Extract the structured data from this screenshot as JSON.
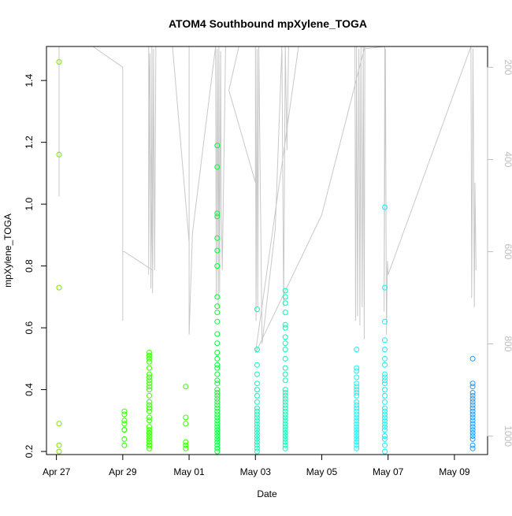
{
  "chart_data": {
    "type": "scatter",
    "title": "ATOM4 Southbound mpXylene_TOGA",
    "xlabel": "Date",
    "ylabel": "mpXylene_TOGA",
    "x_tick_labels": [
      "Apr 27",
      "Apr 29",
      "May 01",
      "May 03",
      "May 05",
      "May 07",
      "May 09"
    ],
    "x_tick_days": [
      0,
      2,
      4,
      6,
      8,
      10,
      12
    ],
    "xlim_days_since_apr27": [
      -0.3,
      13.0
    ],
    "ylim": [
      0.19,
      1.51
    ],
    "y_ticks": [
      0.2,
      0.4,
      0.6,
      0.8,
      1.0,
      1.2,
      1.4
    ],
    "y2_ticks": [
      200,
      400,
      600,
      800,
      1000
    ],
    "y2lim": [
      1040,
      155
    ],
    "y2_axis_color": "#bebebe",
    "altitude_line_color": "#c8c8c8",
    "series": [
      {
        "color": "#7fe500",
        "points": [
          [
            0.08,
            1.46
          ],
          [
            0.08,
            1.16
          ],
          [
            0.08,
            0.73
          ],
          [
            0.08,
            0.29
          ],
          [
            0.08,
            0.22
          ],
          [
            0.08,
            0.2
          ]
        ]
      },
      {
        "color": "#33ff00",
        "points": [
          [
            2.05,
            0.33
          ],
          [
            2.05,
            0.32
          ],
          [
            2.05,
            0.3
          ],
          [
            2.05,
            0.29
          ],
          [
            2.05,
            0.27
          ],
          [
            2.05,
            0.27
          ],
          [
            2.05,
            0.24
          ],
          [
            2.05,
            0.22
          ],
          [
            2.8,
            0.52
          ],
          [
            2.8,
            0.51
          ],
          [
            2.8,
            0.5
          ],
          [
            2.8,
            0.49
          ],
          [
            2.8,
            0.47
          ],
          [
            2.8,
            0.45
          ],
          [
            2.8,
            0.44
          ],
          [
            2.8,
            0.44
          ],
          [
            2.8,
            0.43
          ],
          [
            2.8,
            0.42
          ],
          [
            2.8,
            0.41
          ],
          [
            2.8,
            0.4
          ],
          [
            2.8,
            0.38
          ],
          [
            2.8,
            0.36
          ],
          [
            2.8,
            0.35
          ],
          [
            2.8,
            0.34
          ],
          [
            2.8,
            0.33
          ],
          [
            2.8,
            0.31
          ],
          [
            2.8,
            0.3
          ],
          [
            2.8,
            0.28
          ],
          [
            2.8,
            0.27
          ],
          [
            2.8,
            0.26
          ],
          [
            2.8,
            0.26
          ],
          [
            2.8,
            0.25
          ],
          [
            2.8,
            0.24
          ],
          [
            2.8,
            0.23
          ],
          [
            2.8,
            0.22
          ],
          [
            2.8,
            0.22
          ],
          [
            2.8,
            0.21
          ],
          [
            3.9,
            0.41
          ],
          [
            3.9,
            0.31
          ],
          [
            3.9,
            0.29
          ],
          [
            3.9,
            0.23
          ],
          [
            3.9,
            0.22
          ],
          [
            3.9,
            0.21
          ]
        ]
      },
      {
        "color": "#00ff33",
        "points": [
          [
            4.85,
            1.19
          ],
          [
            4.85,
            1.12
          ],
          [
            4.85,
            0.97
          ],
          [
            4.85,
            0.96
          ],
          [
            4.85,
            0.89
          ],
          [
            4.85,
            0.85
          ],
          [
            4.85,
            0.8
          ],
          [
            4.85,
            0.7
          ],
          [
            4.85,
            0.67
          ],
          [
            4.85,
            0.65
          ],
          [
            4.85,
            0.62
          ],
          [
            4.85,
            0.58
          ],
          [
            4.85,
            0.55
          ],
          [
            4.85,
            0.52
          ],
          [
            4.85,
            0.5
          ],
          [
            4.85,
            0.48
          ],
          [
            4.85,
            0.47
          ],
          [
            4.85,
            0.45
          ],
          [
            4.85,
            0.43
          ],
          [
            4.85,
            0.42
          ],
          [
            4.85,
            0.4
          ],
          [
            4.85,
            0.39
          ],
          [
            4.85,
            0.38
          ],
          [
            4.85,
            0.37
          ],
          [
            4.85,
            0.36
          ],
          [
            4.85,
            0.35
          ],
          [
            4.85,
            0.34
          ],
          [
            4.85,
            0.33
          ],
          [
            4.85,
            0.32
          ],
          [
            4.85,
            0.31
          ],
          [
            4.85,
            0.3
          ],
          [
            4.85,
            0.29
          ],
          [
            4.85,
            0.28
          ],
          [
            4.85,
            0.27
          ],
          [
            4.85,
            0.26
          ],
          [
            4.85,
            0.25
          ],
          [
            4.85,
            0.24
          ],
          [
            4.85,
            0.23
          ],
          [
            4.85,
            0.22
          ],
          [
            4.85,
            0.21
          ],
          [
            4.85,
            0.2
          ]
        ]
      },
      {
        "color": "#00ffb2",
        "points": [
          [
            6.05,
            0.66
          ],
          [
            6.05,
            0.53
          ],
          [
            6.05,
            0.48
          ],
          [
            6.05,
            0.45
          ],
          [
            6.05,
            0.42
          ],
          [
            6.05,
            0.4
          ],
          [
            6.05,
            0.38
          ],
          [
            6.05,
            0.36
          ],
          [
            6.05,
            0.34
          ],
          [
            6.05,
            0.33
          ],
          [
            6.05,
            0.32
          ],
          [
            6.05,
            0.31
          ],
          [
            6.05,
            0.3
          ],
          [
            6.05,
            0.29
          ],
          [
            6.05,
            0.28
          ],
          [
            6.05,
            0.27
          ],
          [
            6.05,
            0.26
          ],
          [
            6.05,
            0.25
          ],
          [
            6.05,
            0.24
          ],
          [
            6.05,
            0.23
          ],
          [
            6.05,
            0.22
          ],
          [
            6.05,
            0.21
          ],
          [
            6.05,
            0.2
          ],
          [
            6.9,
            0.72
          ],
          [
            6.9,
            0.7
          ],
          [
            6.9,
            0.68
          ],
          [
            6.9,
            0.65
          ],
          [
            6.9,
            0.61
          ],
          [
            6.9,
            0.6
          ],
          [
            6.9,
            0.57
          ],
          [
            6.9,
            0.55
          ],
          [
            6.9,
            0.53
          ],
          [
            6.9,
            0.5
          ],
          [
            6.9,
            0.47
          ],
          [
            6.9,
            0.45
          ],
          [
            6.9,
            0.43
          ],
          [
            6.9,
            0.4
          ],
          [
            6.9,
            0.39
          ],
          [
            6.9,
            0.38
          ],
          [
            6.9,
            0.37
          ],
          [
            6.9,
            0.36
          ],
          [
            6.9,
            0.35
          ],
          [
            6.9,
            0.34
          ],
          [
            6.9,
            0.33
          ],
          [
            6.9,
            0.32
          ],
          [
            6.9,
            0.31
          ],
          [
            6.9,
            0.3
          ],
          [
            6.9,
            0.29
          ],
          [
            6.9,
            0.28
          ],
          [
            6.9,
            0.27
          ],
          [
            6.9,
            0.26
          ],
          [
            6.9,
            0.25
          ],
          [
            6.9,
            0.24
          ],
          [
            6.9,
            0.23
          ],
          [
            6.9,
            0.22
          ],
          [
            6.9,
            0.21
          ]
        ]
      },
      {
        "color": "#00ffff",
        "points": [
          [
            9.05,
            0.53
          ],
          [
            9.05,
            0.47
          ],
          [
            9.05,
            0.46
          ],
          [
            9.05,
            0.44
          ],
          [
            9.05,
            0.42
          ],
          [
            9.05,
            0.41
          ],
          [
            9.05,
            0.4
          ],
          [
            9.05,
            0.39
          ],
          [
            9.05,
            0.38
          ],
          [
            9.05,
            0.36
          ],
          [
            9.05,
            0.35
          ],
          [
            9.05,
            0.34
          ],
          [
            9.05,
            0.33
          ],
          [
            9.05,
            0.32
          ],
          [
            9.05,
            0.31
          ],
          [
            9.05,
            0.3
          ],
          [
            9.05,
            0.29
          ],
          [
            9.05,
            0.28
          ],
          [
            9.05,
            0.27
          ],
          [
            9.05,
            0.26
          ],
          [
            9.05,
            0.25
          ],
          [
            9.05,
            0.24
          ],
          [
            9.05,
            0.23
          ],
          [
            9.05,
            0.22
          ],
          [
            9.05,
            0.21
          ],
          [
            9.9,
            0.99
          ],
          [
            9.9,
            0.73
          ],
          [
            9.9,
            0.62
          ],
          [
            9.9,
            0.56
          ],
          [
            9.9,
            0.53
          ],
          [
            9.9,
            0.5
          ],
          [
            9.9,
            0.48
          ],
          [
            9.9,
            0.45
          ],
          [
            9.9,
            0.44
          ],
          [
            9.9,
            0.43
          ],
          [
            9.9,
            0.42
          ],
          [
            9.9,
            0.4
          ],
          [
            9.9,
            0.38
          ],
          [
            9.9,
            0.36
          ],
          [
            9.9,
            0.34
          ],
          [
            9.9,
            0.33
          ],
          [
            9.9,
            0.32
          ],
          [
            9.9,
            0.31
          ],
          [
            9.9,
            0.3
          ],
          [
            9.9,
            0.29
          ],
          [
            9.9,
            0.28
          ],
          [
            9.9,
            0.27
          ],
          [
            9.9,
            0.25
          ],
          [
            9.9,
            0.24
          ],
          [
            9.9,
            0.22
          ],
          [
            9.9,
            0.2
          ]
        ]
      },
      {
        "color": "#1a99ff",
        "points": [
          [
            12.55,
            0.5
          ],
          [
            12.55,
            0.42
          ],
          [
            12.55,
            0.41
          ],
          [
            12.55,
            0.39
          ],
          [
            12.55,
            0.38
          ],
          [
            12.55,
            0.37
          ],
          [
            12.55,
            0.36
          ],
          [
            12.55,
            0.35
          ],
          [
            12.55,
            0.34
          ],
          [
            12.55,
            0.33
          ],
          [
            12.55,
            0.32
          ],
          [
            12.55,
            0.31
          ],
          [
            12.55,
            0.3
          ],
          [
            12.55,
            0.29
          ],
          [
            12.55,
            0.28
          ],
          [
            12.55,
            0.27
          ],
          [
            12.55,
            0.26
          ],
          [
            12.55,
            0.25
          ],
          [
            12.55,
            0.24
          ],
          [
            12.55,
            0.22
          ],
          [
            12.55,
            0.21
          ]
        ]
      }
    ],
    "altitude_trace": [
      [
        0.08,
        155
      ],
      [
        0.08,
        480
      ],
      [
        0.08,
        170
      ],
      [
        0.08,
        155
      ],
      [
        1.1,
        155
      ],
      [
        2.0,
        200
      ],
      [
        2.0,
        750
      ],
      [
        2.0,
        600
      ],
      [
        2.05,
        600
      ],
      [
        2.9,
        640
      ],
      [
        2.78,
        155
      ],
      [
        2.78,
        650
      ],
      [
        2.82,
        170
      ],
      [
        2.85,
        680
      ],
      [
        2.88,
        155
      ],
      [
        2.9,
        690
      ],
      [
        2.93,
        160
      ],
      [
        2.96,
        640
      ],
      [
        3.0,
        155
      ],
      [
        3.5,
        155
      ],
      [
        4.0,
        580
      ],
      [
        4.0,
        155
      ],
      [
        4.0,
        780
      ],
      [
        4.1,
        560
      ],
      [
        4.8,
        155
      ],
      [
        4.82,
        700
      ],
      [
        4.85,
        160
      ],
      [
        4.88,
        720
      ],
      [
        4.9,
        155
      ],
      [
        4.92,
        690
      ],
      [
        4.95,
        165
      ],
      [
        4.97,
        500
      ],
      [
        5.0,
        640
      ],
      [
        5.1,
        155
      ],
      [
        5.5,
        155
      ],
      [
        5.2,
        250
      ],
      [
        6.0,
        450
      ],
      [
        6.0,
        155
      ],
      [
        6.02,
        750
      ],
      [
        6.05,
        160
      ],
      [
        6.07,
        720
      ],
      [
        6.1,
        155
      ],
      [
        6.2,
        800
      ],
      [
        6.6,
        550
      ],
      [
        6.8,
        155
      ],
      [
        6.85,
        720
      ],
      [
        6.9,
        155
      ],
      [
        6.95,
        380
      ],
      [
        7.0,
        155
      ],
      [
        7.3,
        155
      ],
      [
        6.0,
        820
      ],
      [
        8.0,
        520
      ],
      [
        9.3,
        155
      ],
      [
        9.0,
        155
      ],
      [
        9.02,
        750
      ],
      [
        9.05,
        155
      ],
      [
        9.08,
        740
      ],
      [
        9.12,
        160
      ],
      [
        9.15,
        760
      ],
      [
        9.18,
        155
      ],
      [
        9.22,
        720
      ],
      [
        9.25,
        155
      ],
      [
        9.28,
        790
      ],
      [
        9.3,
        160
      ],
      [
        9.9,
        155
      ],
      [
        9.88,
        730
      ],
      [
        9.92,
        160
      ],
      [
        9.95,
        780
      ],
      [
        9.98,
        620
      ],
      [
        10.0,
        650
      ],
      [
        12.5,
        155
      ],
      [
        12.52,
        700
      ],
      [
        12.56,
        160
      ],
      [
        12.6,
        720
      ],
      [
        12.62,
        450
      ],
      [
        12.65,
        640
      ]
    ]
  }
}
